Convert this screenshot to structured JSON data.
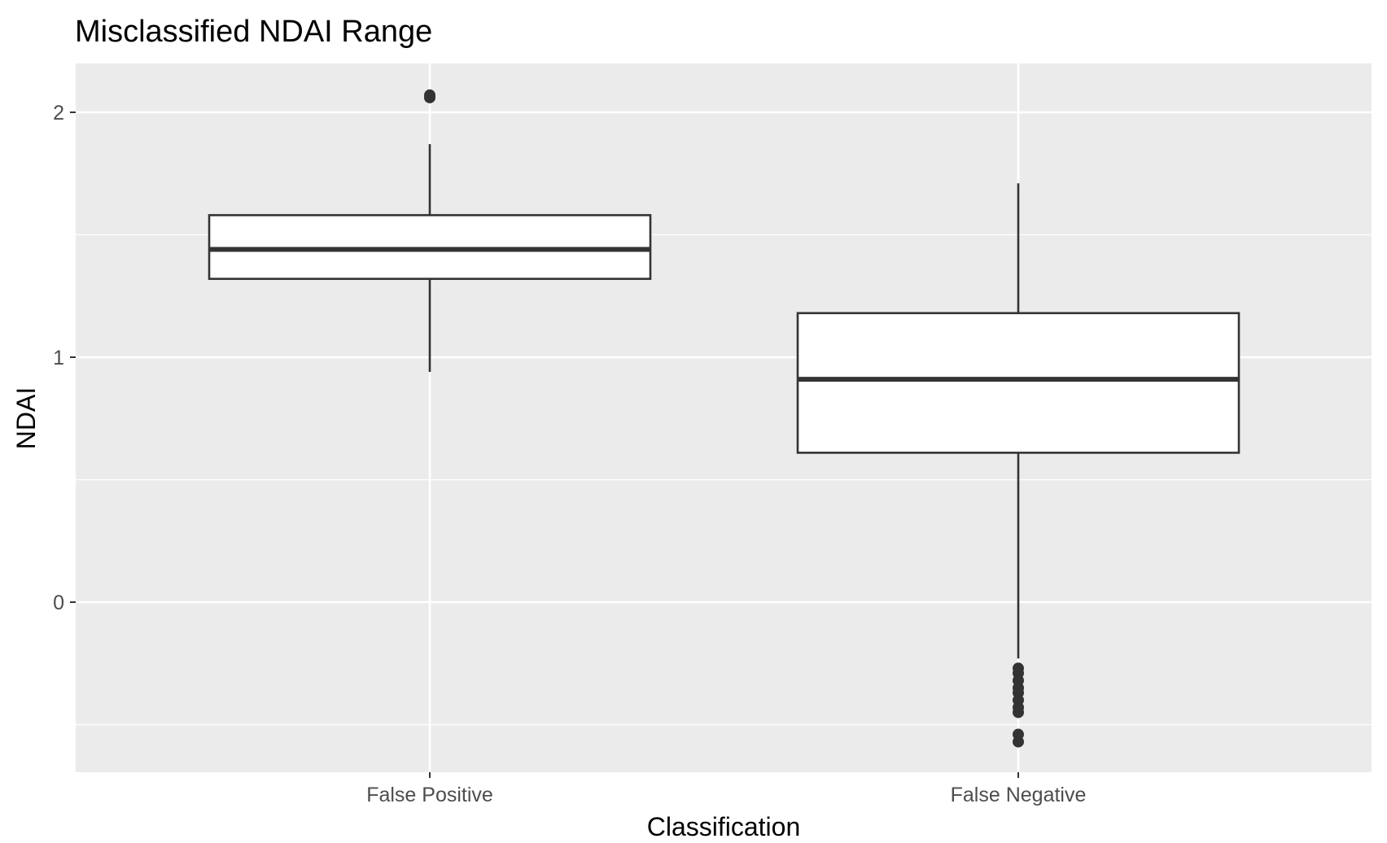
{
  "chart_data": {
    "type": "boxplot",
    "title": "Misclassified NDAI Range",
    "xlabel": "Classification",
    "ylabel": "NDAI",
    "categories": [
      "False Positive",
      "False Negative"
    ],
    "ylim": [
      -0.7,
      2.2
    ],
    "yticks": [
      0,
      1,
      2
    ],
    "grid": true,
    "boxes": [
      {
        "category": "False Positive",
        "whisker_low": 0.94,
        "q1": 1.32,
        "median": 1.44,
        "q3": 1.58,
        "whisker_high": 1.87,
        "outliers": [
          2.06,
          2.07
        ]
      },
      {
        "category": "False Negative",
        "whisker_low": -0.23,
        "q1": 0.61,
        "median": 0.91,
        "q3": 1.18,
        "whisker_high": 1.71,
        "outliers": [
          -0.27,
          -0.29,
          -0.32,
          -0.35,
          -0.37,
          -0.4,
          -0.43,
          -0.45,
          -0.54,
          -0.57
        ]
      }
    ]
  }
}
